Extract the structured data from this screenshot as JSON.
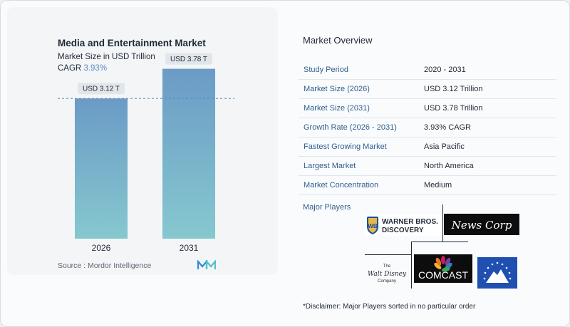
{
  "chart_data": {
    "type": "bar",
    "title": "Media and Entertainment Market",
    "subtitle": "Market Size in USD Trillion",
    "cagr_label": "CAGR",
    "cagr_value": "3.93%",
    "categories": [
      "2026",
      "2031"
    ],
    "values": [
      3.12,
      3.78
    ],
    "data_labels": [
      "USD 3.12 T",
      "USD 3.78 T"
    ],
    "ylim": [
      0,
      3.9
    ],
    "reference_line": 3.12,
    "bar_color_top": "#6b9bc6",
    "bar_color_bottom": "#86c8cf"
  },
  "source": "Source :  Mordor Intelligence",
  "overview": {
    "title": "Market Overview",
    "rows": [
      {
        "key": "Study Period",
        "value": "2020 - 2031"
      },
      {
        "key": "Market Size (2026)",
        "value": "USD 3.12 Trillion"
      },
      {
        "key": "Market Size (2031)",
        "value": "USD 3.78 Trillion"
      },
      {
        "key": "Growth Rate (2026 - 2031)",
        "value": "3.93% CAGR"
      },
      {
        "key": "Fastest Growing Market",
        "value": "Asia Pacific"
      },
      {
        "key": "Largest Market",
        "value": "North America"
      },
      {
        "key": "Market Concentration",
        "value": "Medium"
      }
    ]
  },
  "players": {
    "label": "Major Players",
    "wbd": {
      "line1": "WARNER BROS.",
      "line2": "DISCOVERY"
    },
    "newscorp": "News Corp",
    "disney": {
      "line1": "The",
      "line2": "Walt Disney",
      "line3": "Company"
    },
    "comcast": "COMCAST"
  },
  "disclaimer": "*Disclaimer: Major Players sorted in no particular order",
  "colors": {
    "accent": "#2f5f90",
    "cagr": "#5b8fc0"
  }
}
